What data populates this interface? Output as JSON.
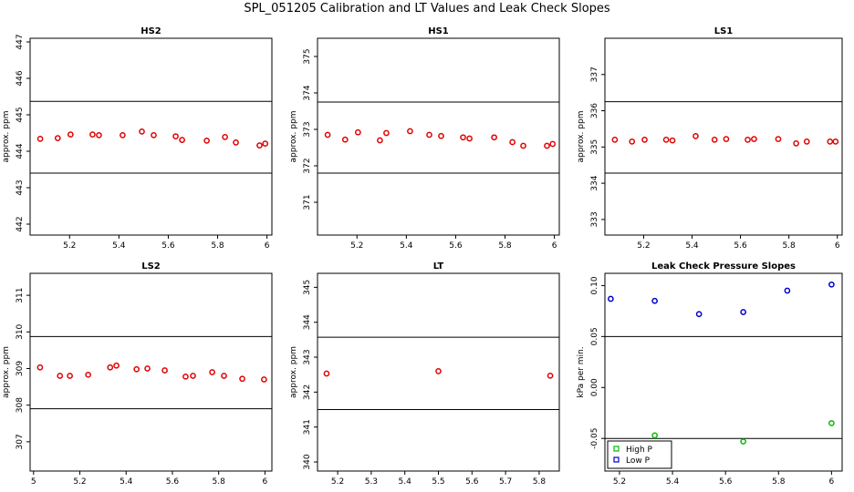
{
  "title": "SPL_051205  Calibration and LT Values and Leak Check Slopes",
  "chart_data": [
    {
      "type": "scatter",
      "title": "HS2",
      "ylabel": "approx. ppm",
      "color": "#e00000",
      "x": [
        5.081,
        5.152,
        5.204,
        5.293,
        5.319,
        5.415,
        5.493,
        5.541,
        5.63,
        5.656,
        5.756,
        5.83,
        5.874,
        5.97,
        5.993
      ],
      "values": [
        444.34,
        444.36,
        444.46,
        444.46,
        444.44,
        444.44,
        444.54,
        444.44,
        444.41,
        444.31,
        444.29,
        444.39,
        444.24,
        444.16,
        444.21
      ],
      "xlim": [
        5.04,
        6.02
      ],
      "ylim": [
        441.7,
        447.1
      ],
      "xticks": [
        5.2,
        5.4,
        5.6,
        5.8,
        6.0
      ],
      "yticks": [
        442,
        443,
        444,
        445,
        446,
        447
      ],
      "hlines": [
        445.37,
        443.4
      ]
    },
    {
      "type": "scatter",
      "title": "HS1",
      "ylabel": "approx. ppm",
      "color": "#e00000",
      "x": [
        5.081,
        5.152,
        5.204,
        5.293,
        5.319,
        5.415,
        5.493,
        5.541,
        5.63,
        5.656,
        5.756,
        5.83,
        5.874,
        5.97,
        5.993
      ],
      "values": [
        372.85,
        372.72,
        372.92,
        372.7,
        372.9,
        372.95,
        372.85,
        372.82,
        372.78,
        372.75,
        372.78,
        372.65,
        372.55,
        372.55,
        372.6
      ],
      "xlim": [
        5.04,
        6.02
      ],
      "ylim": [
        370.1,
        375.5
      ],
      "xticks": [
        5.2,
        5.4,
        5.6,
        5.8,
        6.0
      ],
      "yticks": [
        371,
        372,
        373,
        374,
        375
      ],
      "hlines": [
        373.75,
        371.8
      ]
    },
    {
      "type": "scatter",
      "title": "LS1",
      "ylabel": "approx. ppm",
      "color": "#e00000",
      "x": [
        5.081,
        5.152,
        5.204,
        5.293,
        5.319,
        5.415,
        5.493,
        5.541,
        5.63,
        5.656,
        5.756,
        5.83,
        5.874,
        5.97,
        5.993
      ],
      "values": [
        335.2,
        335.15,
        335.2,
        335.2,
        335.18,
        335.3,
        335.2,
        335.22,
        335.2,
        335.22,
        335.22,
        335.1,
        335.15,
        335.15,
        335.15
      ],
      "xlim": [
        5.04,
        6.02
      ],
      "ylim": [
        332.57,
        338.0
      ],
      "xticks": [
        5.2,
        5.4,
        5.6,
        5.8,
        6.0
      ],
      "yticks": [
        333,
        334,
        335,
        336,
        337
      ],
      "hlines": [
        336.25,
        334.28
      ]
    },
    {
      "type": "scatter",
      "title": "LS2",
      "ylabel": "approx. ppm",
      "color": "#e00000",
      "x": [
        5.028,
        5.114,
        5.157,
        5.236,
        5.331,
        5.358,
        5.445,
        5.492,
        5.567,
        5.657,
        5.689,
        5.772,
        5.823,
        5.902,
        5.996
      ],
      "values": [
        309.03,
        308.8,
        308.8,
        308.83,
        309.03,
        309.08,
        308.98,
        309.0,
        308.95,
        308.78,
        308.8,
        308.9,
        308.8,
        308.72,
        308.7
      ],
      "xlim": [
        4.985,
        6.03
      ],
      "ylim": [
        306.2,
        311.6
      ],
      "xticks": [
        5.0,
        5.2,
        5.4,
        5.6,
        5.8,
        6.0
      ],
      "yticks": [
        307,
        308,
        309,
        310,
        311
      ],
      "hlines": [
        309.875,
        307.9
      ]
    },
    {
      "type": "scatter",
      "title": "LT",
      "ylabel": "approx. ppm",
      "color": "#e00000",
      "x": [
        5.167,
        5.5,
        5.833
      ],
      "values": [
        342.53,
        342.6,
        342.47
      ],
      "xlim": [
        5.14,
        5.86
      ],
      "ylim": [
        339.74,
        345.4
      ],
      "xticks": [
        5.2,
        5.3,
        5.4,
        5.5,
        5.6,
        5.7,
        5.8
      ],
      "yticks": [
        340,
        341,
        342,
        343,
        344,
        345
      ],
      "hlines": [
        343.57,
        341.5
      ]
    },
    {
      "type": "scatter",
      "title": "Leak Check Pressure Slopes",
      "ylabel": "kPa per min.",
      "x": [
        5.167,
        5.333,
        5.5,
        5.667,
        5.833,
        6.0
      ],
      "series": [
        {
          "name": "High P",
          "color": "#00bb00",
          "values": [
            null,
            -0.047,
            null,
            -0.053,
            null,
            -0.035
          ]
        },
        {
          "name": "Low P",
          "color": "#0000cc",
          "values": [
            0.087,
            0.085,
            0.072,
            0.074,
            0.095,
            0.101
          ]
        }
      ],
      "xlim": [
        5.145,
        6.04
      ],
      "ylim": [
        -0.082,
        0.112
      ],
      "xticks": [
        5.2,
        5.4,
        5.6,
        5.8,
        6.0
      ],
      "yticks": [
        {
          "value": -0.05,
          "label": "-0.05"
        },
        {
          "value": 0,
          "label": "0.00"
        },
        {
          "value": 0.05,
          "label": "0.05"
        },
        {
          "value": 0.1,
          "label": "0.10"
        }
      ],
      "hlines": [
        0.05,
        -0.05
      ],
      "legend": "bottomleft"
    }
  ]
}
